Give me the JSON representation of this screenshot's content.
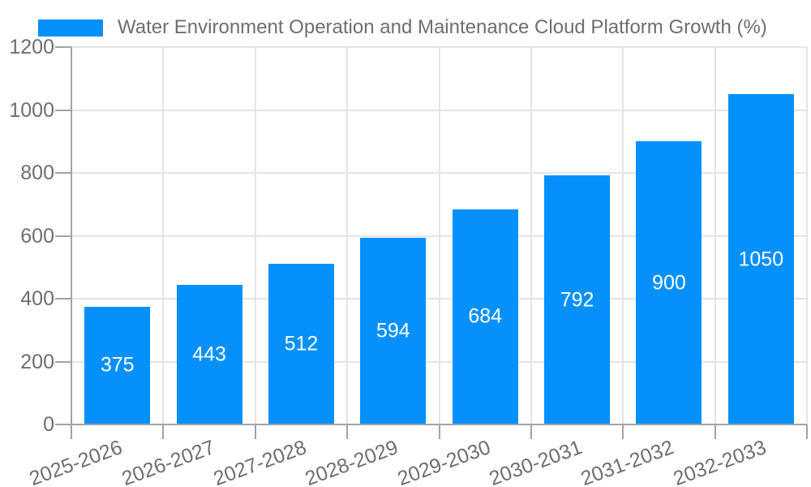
{
  "legend": {
    "label": "Water Environment Operation and Maintenance Cloud Platform Growth (%)"
  },
  "colors": {
    "bar": "#0690fa",
    "bar_label_text": "#ffffff",
    "axis_text": "#6e6e6e",
    "grid_line": "#e4e4e4",
    "axis_line": "#a3a3a3",
    "background": "#ffffff"
  },
  "chart_data": {
    "type": "bar",
    "title": "Water Environment Operation and Maintenance Cloud Platform Growth (%)",
    "categories": [
      "2025-2026",
      "2026-2027",
      "2027-2028",
      "2028-2029",
      "2029-2030",
      "2030-2031",
      "2031-2032",
      "2032-2033"
    ],
    "values": [
      375,
      443,
      512,
      594,
      684,
      792,
      900,
      1050
    ],
    "xlabel": "",
    "ylabel": "",
    "ylim": [
      0,
      1200
    ],
    "yticks": [
      0,
      200,
      400,
      600,
      800,
      1000,
      1200
    ],
    "grid": true,
    "legend_position": "top",
    "value_labels": "inside-center",
    "x_tick_rotation_deg": -20,
    "bar_color": "#0690fa"
  }
}
